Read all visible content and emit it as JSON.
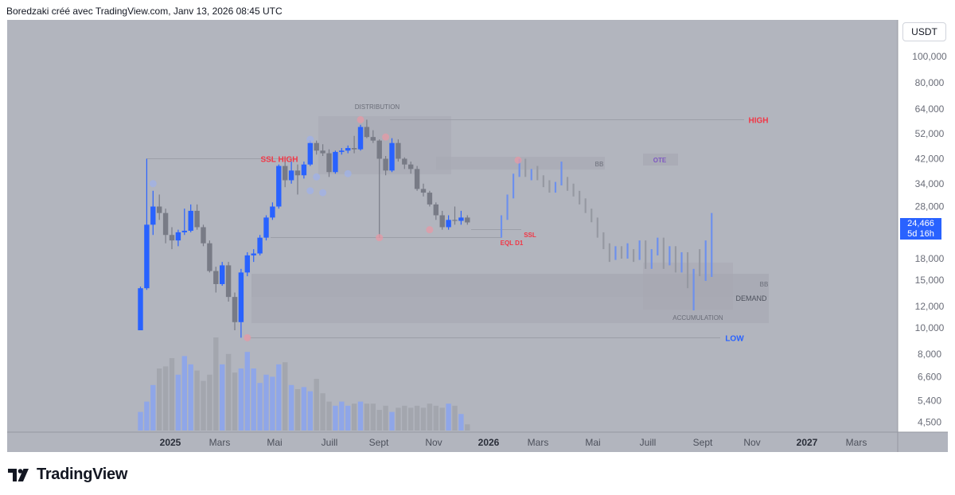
{
  "header": {
    "caption": "Boredzaki créé avec TradingView.com, Janv 13, 2026 08:45 UTC"
  },
  "currency_button": "USDT",
  "last_price": {
    "value": "24,466",
    "countdown": "5d 16h"
  },
  "logo_text": "TradingView",
  "colors": {
    "up": "#2962ff",
    "down": "#787b86",
    "projection_up": "#6a8ff0",
    "projection_down": "#9598a1",
    "red_label": "#f23645",
    "blue_label": "#2962ff",
    "zone": "#a7a8b2"
  },
  "chart_data": {
    "type": "candlestick",
    "scale": "log",
    "ylim": [
      4000,
      135000
    ],
    "y_ticks": [
      "100,000",
      "80,000",
      "64,000",
      "52,000",
      "42,000",
      "34,000",
      "28,000",
      "18,000",
      "15,000",
      "12,000",
      "10,000",
      "8,000",
      "6,600",
      "5,400",
      "4,500"
    ],
    "x_ticks": [
      "2025",
      "Mars",
      "Mai",
      "Juill",
      "Sept",
      "Nov",
      "2026",
      "Mars",
      "Mai",
      "Juill",
      "Sept",
      "Nov",
      "2027",
      "Mars"
    ],
    "candles": [
      {
        "o": 9800,
        "h": 14200,
        "l": 9800,
        "c": 14000
      },
      {
        "o": 14000,
        "h": 42000,
        "l": 13800,
        "c": 24000
      },
      {
        "o": 24000,
        "h": 32000,
        "l": 22000,
        "c": 28000
      },
      {
        "o": 28000,
        "h": 31000,
        "l": 25000,
        "c": 26500
      },
      {
        "o": 26500,
        "h": 27500,
        "l": 20500,
        "c": 22000
      },
      {
        "o": 22000,
        "h": 23500,
        "l": 19500,
        "c": 21000
      },
      {
        "o": 21000,
        "h": 23000,
        "l": 20000,
        "c": 22500
      },
      {
        "o": 22500,
        "h": 27500,
        "l": 22000,
        "c": 22800
      },
      {
        "o": 22800,
        "h": 28500,
        "l": 22500,
        "c": 27000
      },
      {
        "o": 27000,
        "h": 28500,
        "l": 23000,
        "c": 23500
      },
      {
        "o": 23500,
        "h": 24000,
        "l": 20000,
        "c": 20500
      },
      {
        "o": 20500,
        "h": 21000,
        "l": 16000,
        "c": 16200
      },
      {
        "o": 16200,
        "h": 16800,
        "l": 13500,
        "c": 14500
      },
      {
        "o": 14500,
        "h": 17500,
        "l": 14300,
        "c": 17000
      },
      {
        "o": 17000,
        "h": 17500,
        "l": 12500,
        "c": 13000
      },
      {
        "o": 13000,
        "h": 13500,
        "l": 9800,
        "c": 10500
      },
      {
        "o": 10500,
        "h": 16500,
        "l": 9200,
        "c": 16000
      },
      {
        "o": 16000,
        "h": 19000,
        "l": 15500,
        "c": 18500
      },
      {
        "o": 18500,
        "h": 19500,
        "l": 17500,
        "c": 18800
      },
      {
        "o": 18800,
        "h": 22000,
        "l": 18500,
        "c": 21500
      },
      {
        "o": 21500,
        "h": 26000,
        "l": 21000,
        "c": 25500
      },
      {
        "o": 25500,
        "h": 29000,
        "l": 25000,
        "c": 28000
      },
      {
        "o": 28000,
        "h": 40000,
        "l": 27500,
        "c": 39500
      },
      {
        "o": 39500,
        "h": 41500,
        "l": 33000,
        "c": 35000
      },
      {
        "o": 35000,
        "h": 41000,
        "l": 34000,
        "c": 38000
      },
      {
        "o": 38000,
        "h": 40000,
        "l": 31000,
        "c": 36500
      },
      {
        "o": 36500,
        "h": 41000,
        "l": 35500,
        "c": 40000
      },
      {
        "o": 40000,
        "h": 49000,
        "l": 39500,
        "c": 48000
      },
      {
        "o": 48000,
        "h": 49000,
        "l": 43500,
        "c": 45000
      },
      {
        "o": 45000,
        "h": 47500,
        "l": 43000,
        "c": 44000
      },
      {
        "o": 44000,
        "h": 45500,
        "l": 36000,
        "c": 37500
      },
      {
        "o": 37500,
        "h": 45000,
        "l": 37000,
        "c": 44500
      },
      {
        "o": 44500,
        "h": 46000,
        "l": 43500,
        "c": 45000
      },
      {
        "o": 45000,
        "h": 47000,
        "l": 44000,
        "c": 46000
      },
      {
        "o": 46000,
        "h": 51000,
        "l": 44000,
        "c": 45500
      },
      {
        "o": 45500,
        "h": 56000,
        "l": 45000,
        "c": 55000
      },
      {
        "o": 55000,
        "h": 58500,
        "l": 50000,
        "c": 50500
      },
      {
        "o": 50500,
        "h": 53500,
        "l": 48000,
        "c": 49000
      },
      {
        "o": 49000,
        "h": 49500,
        "l": 21500,
        "c": 42000
      },
      {
        "o": 42000,
        "h": 43000,
        "l": 36500,
        "c": 38000
      },
      {
        "o": 38000,
        "h": 50000,
        "l": 37500,
        "c": 48000
      },
      {
        "o": 48000,
        "h": 49500,
        "l": 41000,
        "c": 42000
      },
      {
        "o": 42000,
        "h": 42500,
        "l": 38500,
        "c": 40000
      },
      {
        "o": 40000,
        "h": 41000,
        "l": 37000,
        "c": 38500
      },
      {
        "o": 38500,
        "h": 39500,
        "l": 32000,
        "c": 32500
      },
      {
        "o": 32500,
        "h": 34000,
        "l": 30500,
        "c": 31500
      },
      {
        "o": 31500,
        "h": 32000,
        "l": 28000,
        "c": 28500
      },
      {
        "o": 28500,
        "h": 29000,
        "l": 25000,
        "c": 26000
      },
      {
        "o": 26000,
        "h": 27000,
        "l": 23000,
        "c": 23500
      },
      {
        "o": 23500,
        "h": 26000,
        "l": 23000,
        "c": 25000
      },
      {
        "o": 25000,
        "h": 28000,
        "l": 24000,
        "c": 24800
      },
      {
        "o": 24800,
        "h": 27000,
        "l": 24000,
        "c": 25500
      },
      {
        "o": 25500,
        "h": 26000,
        "l": 24000,
        "c": 24466
      }
    ],
    "projection": [
      {
        "o": 24000,
        "h": 26000,
        "l": 21500,
        "c": 25500
      },
      {
        "o": 25500,
        "h": 31000,
        "l": 25000,
        "c": 30500
      },
      {
        "o": 30500,
        "h": 37000,
        "l": 30000,
        "c": 36500
      },
      {
        "o": 36500,
        "h": 42000,
        "l": 36000,
        "c": 41500
      },
      {
        "o": 41500,
        "h": 42000,
        "l": 36000,
        "c": 37000
      },
      {
        "o": 37000,
        "h": 38500,
        "l": 35000,
        "c": 37500
      },
      {
        "o": 37500,
        "h": 39500,
        "l": 35000,
        "c": 35500
      },
      {
        "o": 35500,
        "h": 36500,
        "l": 33000,
        "c": 34000
      },
      {
        "o": 34000,
        "h": 35000,
        "l": 31500,
        "c": 32000
      },
      {
        "o": 32000,
        "h": 34500,
        "l": 31500,
        "c": 34000
      },
      {
        "o": 34000,
        "h": 41000,
        "l": 33500,
        "c": 35000
      },
      {
        "o": 35000,
        "h": 36000,
        "l": 32000,
        "c": 33000
      },
      {
        "o": 33000,
        "h": 34000,
        "l": 30500,
        "c": 31000
      },
      {
        "o": 31000,
        "h": 32000,
        "l": 28500,
        "c": 29000
      },
      {
        "o": 29000,
        "h": 30000,
        "l": 26500,
        "c": 27000
      },
      {
        "o": 27000,
        "h": 27500,
        "l": 24500,
        "c": 25000
      },
      {
        "o": 25000,
        "h": 25500,
        "l": 21500,
        "c": 22000
      },
      {
        "o": 22000,
        "h": 22500,
        "l": 19500,
        "c": 20000
      },
      {
        "o": 20000,
        "h": 20500,
        "l": 17500,
        "c": 18000
      },
      {
        "o": 18000,
        "h": 20000,
        "l": 17800,
        "c": 19500
      },
      {
        "o": 19500,
        "h": 20000,
        "l": 18000,
        "c": 18500
      },
      {
        "o": 18500,
        "h": 20500,
        "l": 18000,
        "c": 19000
      },
      {
        "o": 19000,
        "h": 19500,
        "l": 17500,
        "c": 18000
      },
      {
        "o": 18000,
        "h": 21000,
        "l": 17800,
        "c": 20500
      },
      {
        "o": 20500,
        "h": 21000,
        "l": 16500,
        "c": 17000
      },
      {
        "o": 17000,
        "h": 19500,
        "l": 16500,
        "c": 19000
      },
      {
        "o": 19000,
        "h": 21500,
        "l": 18500,
        "c": 21000
      },
      {
        "o": 21000,
        "h": 21500,
        "l": 16500,
        "c": 17500
      },
      {
        "o": 17500,
        "h": 20000,
        "l": 17000,
        "c": 19500
      },
      {
        "o": 19500,
        "h": 20000,
        "l": 16000,
        "c": 16500
      },
      {
        "o": 16500,
        "h": 19000,
        "l": 16000,
        "c": 18500
      },
      {
        "o": 18500,
        "h": 19000,
        "l": 14000,
        "c": 14500
      },
      {
        "o": 14500,
        "h": 16500,
        "l": 11600,
        "c": 16000
      },
      {
        "o": 16000,
        "h": 19500,
        "l": 15500,
        "c": 15500
      },
      {
        "o": 15500,
        "h": 21000,
        "l": 14900,
        "c": 19000
      },
      {
        "o": 15500,
        "h": 26500,
        "l": 15400,
        "c": 26500
      }
    ],
    "volume": [
      9,
      14,
      22,
      30,
      31,
      35,
      27,
      36,
      32,
      29,
      24,
      27,
      45,
      32,
      37,
      28,
      30,
      38,
      30,
      23,
      27,
      26,
      32,
      33,
      22,
      20,
      21,
      19,
      25,
      18,
      14,
      12,
      14,
      12,
      13,
      14,
      13,
      13,
      10,
      12,
      9,
      11,
      12,
      11,
      12,
      11,
      13,
      12,
      11,
      13,
      12,
      8,
      3
    ],
    "annotations": {
      "zones": [
        "DISTRIBUTION",
        "BB",
        "OTE",
        "BB",
        "DEMAND",
        "ACCUMULATION"
      ],
      "levels": {
        "high": "HIGH",
        "low": "LOW",
        "ssl_high": "SSL HIGH",
        "ssl": "SSL",
        "eql_d1": "EQL D1"
      }
    }
  }
}
